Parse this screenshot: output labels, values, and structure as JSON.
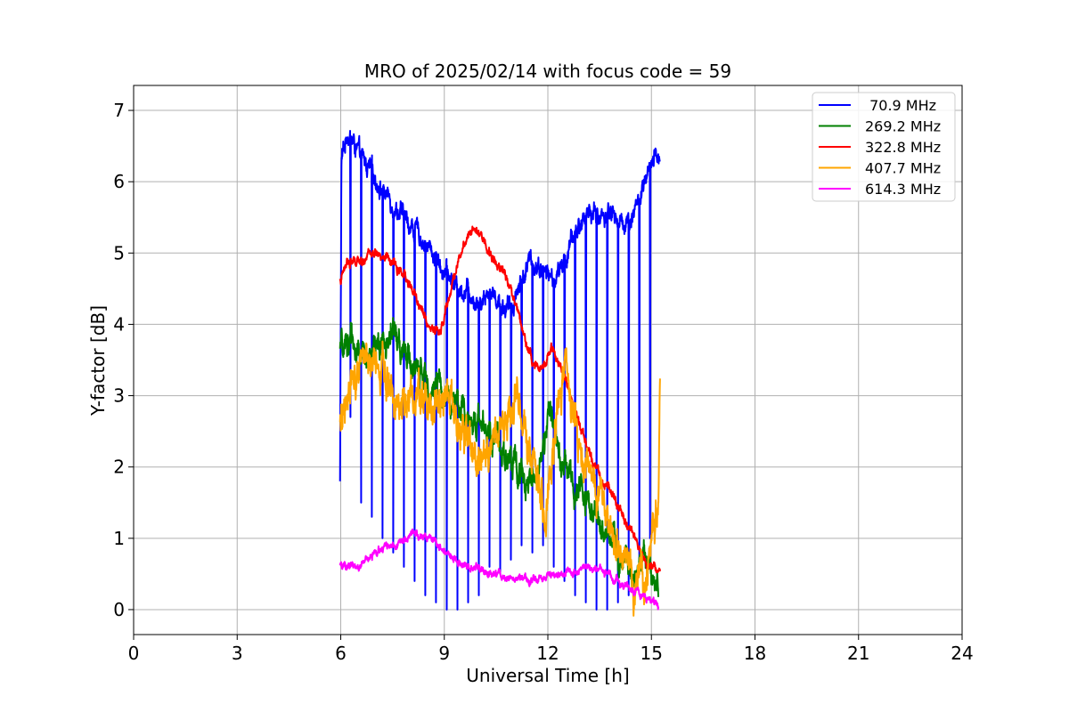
{
  "chart_data": {
    "type": "line",
    "title": "MRO of 2025/02/14 with focus code = 59",
    "xlabel": "Universal Time [h]",
    "ylabel": "Y-factor [dB]",
    "xlim": [
      0,
      24
    ],
    "ylim": [
      -0.35,
      7.35
    ],
    "xticks": [
      0,
      3,
      6,
      9,
      12,
      15,
      18,
      21,
      24
    ],
    "yticks": [
      0,
      1,
      2,
      3,
      4,
      5,
      6,
      7
    ],
    "grid": true,
    "legend_position": "top-right",
    "series": [
      {
        "name": " 70.9 MHz",
        "color": "#0000ff",
        "noise": 0.1,
        "dips": {
          "start": 6.28,
          "step": 0.31,
          "end": 15.2,
          "floor": [
            2.7,
            1.5,
            1.3,
            1.0,
            0.8,
            0.6,
            0.4,
            0.2,
            0.1,
            0.0,
            0.0,
            0.1,
            0.2,
            0.6,
            0.5,
            0.7,
            0.9,
            0.8,
            0.9,
            0.6,
            0.4,
            0.2,
            0.1,
            0.0,
            0.0,
            0.1,
            0.2,
            0.6,
            1.0,
            1.5
          ]
        },
        "points": [
          [
            5.98,
            1.8
          ],
          [
            6.02,
            6.3
          ],
          [
            6.2,
            6.7
          ],
          [
            6.5,
            6.4
          ],
          [
            6.8,
            6.2
          ],
          [
            7.2,
            5.9
          ],
          [
            7.5,
            5.7
          ],
          [
            7.8,
            5.5
          ],
          [
            8.2,
            5.3
          ],
          [
            8.5,
            5.1
          ],
          [
            8.8,
            4.9
          ],
          [
            9.1,
            4.7
          ],
          [
            9.4,
            4.5
          ],
          [
            9.7,
            4.5
          ],
          [
            10.0,
            4.3
          ],
          [
            10.3,
            4.5
          ],
          [
            10.6,
            4.3
          ],
          [
            10.9,
            4.2
          ],
          [
            11.2,
            4.6
          ],
          [
            11.5,
            4.9
          ],
          [
            11.8,
            4.8
          ],
          [
            12.2,
            4.6
          ],
          [
            12.5,
            4.9
          ],
          [
            12.8,
            5.3
          ],
          [
            13.2,
            5.6
          ],
          [
            13.5,
            5.5
          ],
          [
            13.8,
            5.6
          ],
          [
            14.1,
            5.4
          ],
          [
            14.4,
            5.5
          ],
          [
            14.7,
            5.8
          ],
          [
            15.0,
            6.2
          ],
          [
            15.25,
            6.4
          ]
        ]
      },
      {
        "name": "269.2 MHz",
        "color": "#008000",
        "noise": 0.15,
        "points": [
          [
            5.98,
            3.6
          ],
          [
            6.3,
            3.8
          ],
          [
            6.6,
            3.6
          ],
          [
            6.9,
            3.5
          ],
          [
            7.2,
            3.7
          ],
          [
            7.5,
            3.9
          ],
          [
            7.8,
            3.6
          ],
          [
            8.1,
            3.4
          ],
          [
            8.5,
            3.2
          ],
          [
            8.8,
            3.1
          ],
          [
            9.1,
            3.0
          ],
          [
            9.4,
            2.8
          ],
          [
            9.7,
            2.7
          ],
          [
            10.0,
            2.6
          ],
          [
            10.3,
            2.5
          ],
          [
            10.6,
            2.4
          ],
          [
            10.9,
            2.1
          ],
          [
            11.2,
            1.9
          ],
          [
            11.5,
            1.9
          ],
          [
            11.8,
            2.0
          ],
          [
            12.0,
            2.7
          ],
          [
            12.2,
            2.6
          ],
          [
            12.4,
            2.2
          ],
          [
            12.7,
            1.8
          ],
          [
            13.0,
            1.6
          ],
          [
            13.3,
            1.4
          ],
          [
            13.6,
            1.2
          ],
          [
            13.9,
            1.0
          ],
          [
            14.2,
            0.7
          ],
          [
            14.5,
            0.5
          ],
          [
            14.8,
            0.7
          ],
          [
            15.0,
            0.6
          ],
          [
            15.2,
            0.3
          ]
        ]
      },
      {
        "name": "322.8 MHz",
        "color": "#ff0000",
        "noise": 0.05,
        "points": [
          [
            5.98,
            4.6
          ],
          [
            6.2,
            4.9
          ],
          [
            6.5,
            4.85
          ],
          [
            6.8,
            4.95
          ],
          [
            7.1,
            5.0
          ],
          [
            7.4,
            4.9
          ],
          [
            7.7,
            4.75
          ],
          [
            8.0,
            4.55
          ],
          [
            8.3,
            4.25
          ],
          [
            8.6,
            3.95
          ],
          [
            8.9,
            3.9
          ],
          [
            9.1,
            4.3
          ],
          [
            9.4,
            4.9
          ],
          [
            9.7,
            5.3
          ],
          [
            9.9,
            5.4
          ],
          [
            10.1,
            5.2
          ],
          [
            10.4,
            4.9
          ],
          [
            10.7,
            4.8
          ],
          [
            11.0,
            4.4
          ],
          [
            11.3,
            3.9
          ],
          [
            11.6,
            3.4
          ],
          [
            11.9,
            3.4
          ],
          [
            12.1,
            3.7
          ],
          [
            12.3,
            3.5
          ],
          [
            12.6,
            3.1
          ],
          [
            12.9,
            2.6
          ],
          [
            13.2,
            2.2
          ],
          [
            13.5,
            1.9
          ],
          [
            13.8,
            1.7
          ],
          [
            14.1,
            1.4
          ],
          [
            14.4,
            1.1
          ],
          [
            14.7,
            0.8
          ],
          [
            15.0,
            0.6
          ],
          [
            15.25,
            0.5
          ]
        ]
      },
      {
        "name": "407.7 MHz",
        "color": "#ffa500",
        "noise": 0.2,
        "points": [
          [
            5.98,
            2.6
          ],
          [
            6.15,
            3.1
          ],
          [
            6.4,
            3.3
          ],
          [
            6.7,
            3.9
          ],
          [
            6.9,
            3.3
          ],
          [
            7.2,
            3.5
          ],
          [
            7.5,
            3.0
          ],
          [
            7.8,
            2.9
          ],
          [
            8.1,
            3.0
          ],
          [
            8.4,
            3.1
          ],
          [
            8.7,
            2.9
          ],
          [
            9.0,
            3.0
          ],
          [
            9.3,
            2.7
          ],
          [
            9.6,
            2.4
          ],
          [
            9.9,
            2.1
          ],
          [
            10.2,
            2.2
          ],
          [
            10.5,
            2.4
          ],
          [
            10.8,
            2.7
          ],
          [
            11.1,
            3.0
          ],
          [
            11.4,
            2.4
          ],
          [
            11.7,
            1.7
          ],
          [
            11.9,
            1.3
          ],
          [
            12.1,
            2.0
          ],
          [
            12.3,
            2.8
          ],
          [
            12.5,
            3.3
          ],
          [
            12.7,
            2.8
          ],
          [
            13.0,
            2.0
          ],
          [
            13.3,
            1.7
          ],
          [
            13.6,
            1.4
          ],
          [
            13.9,
            1.0
          ],
          [
            14.2,
            0.5
          ],
          [
            14.5,
            0.3
          ],
          [
            14.8,
            0.4
          ],
          [
            15.0,
            1.0
          ],
          [
            15.2,
            1.6
          ],
          [
            15.25,
            3.6
          ]
        ]
      },
      {
        "name": "614.3 MHz",
        "color": "#ff00ff",
        "noise": 0.04,
        "points": [
          [
            5.98,
            0.6
          ],
          [
            6.3,
            0.6
          ],
          [
            6.6,
            0.62
          ],
          [
            6.9,
            0.75
          ],
          [
            7.2,
            0.85
          ],
          [
            7.5,
            0.9
          ],
          [
            7.8,
            1.0
          ],
          [
            8.1,
            1.05
          ],
          [
            8.4,
            1.0
          ],
          [
            8.7,
            0.95
          ],
          [
            9.0,
            0.8
          ],
          [
            9.3,
            0.72
          ],
          [
            9.6,
            0.62
          ],
          [
            9.9,
            0.58
          ],
          [
            10.2,
            0.52
          ],
          [
            10.5,
            0.48
          ],
          [
            10.8,
            0.45
          ],
          [
            11.1,
            0.42
          ],
          [
            11.4,
            0.4
          ],
          [
            11.7,
            0.42
          ],
          [
            12.0,
            0.45
          ],
          [
            12.3,
            0.48
          ],
          [
            12.6,
            0.5
          ],
          [
            12.9,
            0.55
          ],
          [
            13.2,
            0.58
          ],
          [
            13.5,
            0.6
          ],
          [
            13.8,
            0.5
          ],
          [
            14.1,
            0.38
          ],
          [
            14.4,
            0.3
          ],
          [
            14.7,
            0.22
          ],
          [
            15.0,
            0.12
          ],
          [
            15.2,
            0.05
          ]
        ]
      }
    ]
  }
}
